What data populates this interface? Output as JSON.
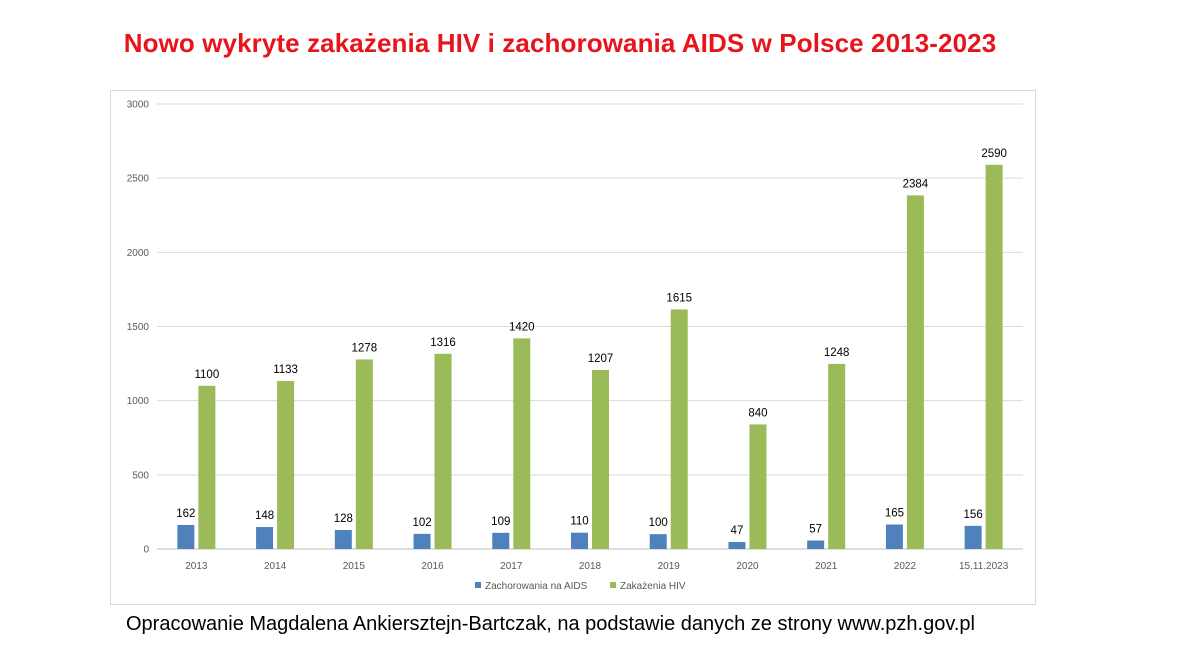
{
  "title": "Nowo wykryte zakażenia HIV i zachorowania AIDS w Polsce 2013-2023",
  "source": "Opracowanie Magdalena Ankiersztejn-Bartczak, na podstawie danych ze strony www.pzh.gov.pl",
  "chart_data": {
    "type": "bar",
    "title": "Nowo wykryte zakażenia HIV i zachorowania AIDS w Polsce 2013-2023",
    "xlabel": "",
    "ylabel": "",
    "categories": [
      "2013",
      "2014",
      "2015",
      "2016",
      "2017",
      "2018",
      "2019",
      "2020",
      "2021",
      "2022",
      "15.11.2023"
    ],
    "series": [
      {
        "name": "Zachorowania na AIDS",
        "color": "#4f81bd",
        "values": [
          162,
          148,
          128,
          102,
          109,
          110,
          100,
          47,
          57,
          165,
          156
        ]
      },
      {
        "name": "Zakażenia HIV",
        "color": "#9bbb59",
        "values": [
          1100,
          1133,
          1278,
          1316,
          1420,
          1207,
          1615,
          840,
          1248,
          2384,
          2590
        ]
      }
    ],
    "ylim": [
      0,
      3000
    ],
    "yticks": [
      0,
      500,
      1000,
      1500,
      2000,
      2500,
      3000
    ],
    "grid": true,
    "legend": "bottom"
  }
}
